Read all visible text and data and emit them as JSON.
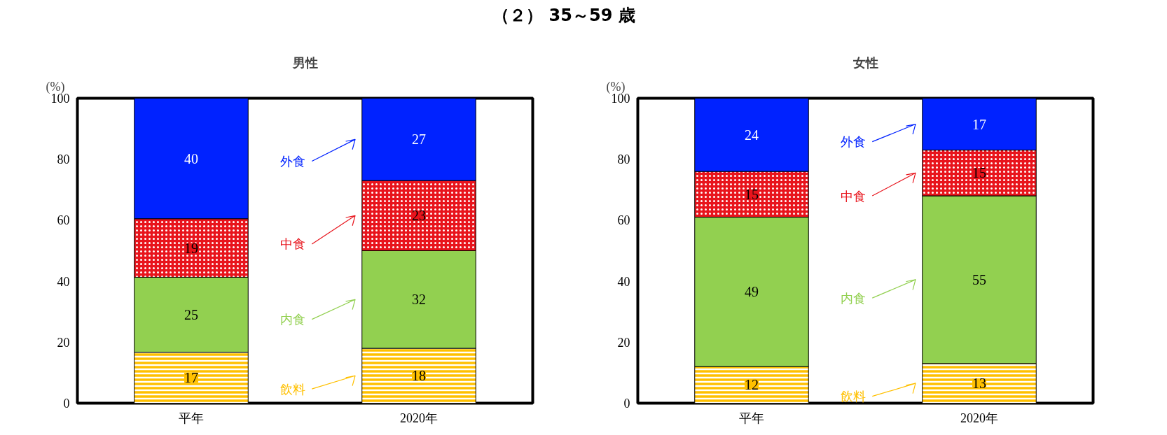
{
  "chart_data": [
    {
      "type": "bar",
      "stacked": true,
      "title": "男性",
      "ylabel": "(%)",
      "annotations": [
        "（２） 35～59 歳"
      ],
      "categories": [
        "平年",
        "2020年"
      ],
      "ylim": [
        0,
        100
      ],
      "yticks": [
        0,
        20,
        40,
        60,
        80,
        100
      ],
      "grid": false,
      "legend": "center",
      "series": [
        {
          "name": "飲料",
          "color": "#ffc000",
          "values": [
            16.7,
            18
          ],
          "value_labels": [
            "17",
            "18"
          ]
        },
        {
          "name": "内食",
          "color": "#92d050",
          "values": [
            24.6,
            32
          ],
          "value_labels": [
            "25",
            "32"
          ]
        },
        {
          "name": "中食",
          "color": "#e8141c",
          "values": [
            19.2,
            23
          ],
          "value_labels": [
            "19",
            "23"
          ]
        },
        {
          "name": "外食",
          "color": "#0022ff",
          "values": [
            39.5,
            27
          ],
          "value_labels": [
            "40",
            "27"
          ]
        }
      ]
    },
    {
      "type": "bar",
      "stacked": true,
      "title": "女性",
      "ylabel": "(%)",
      "categories": [
        "平年",
        "2020年"
      ],
      "ylim": [
        0,
        100
      ],
      "yticks": [
        0,
        20,
        40,
        60,
        80,
        100
      ],
      "grid": false,
      "legend": "center",
      "series": [
        {
          "name": "飲料",
          "color": "#ffc000",
          "values": [
            12,
            13
          ],
          "value_labels": [
            "12",
            "13"
          ]
        },
        {
          "name": "内食",
          "color": "#92d050",
          "values": [
            49,
            55
          ],
          "value_labels": [
            "49",
            "55"
          ]
        },
        {
          "name": "中食",
          "color": "#e8141c",
          "values": [
            15,
            15
          ],
          "value_labels": [
            "15",
            "15"
          ]
        },
        {
          "name": "外食",
          "color": "#0022ff",
          "values": [
            24,
            17
          ],
          "value_labels": [
            "24",
            "17"
          ]
        }
      ]
    }
  ]
}
